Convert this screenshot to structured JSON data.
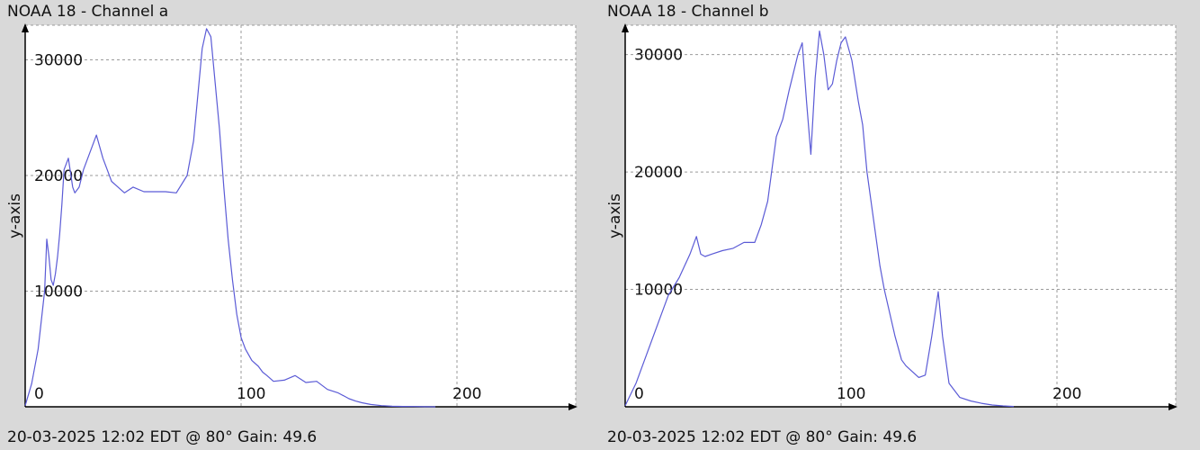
{
  "colors": {
    "line": "#5b5bd6",
    "grid": "#9a9a9a",
    "axis": "#000000",
    "plot_bg": "#ffffff"
  },
  "chart_data": [
    {
      "type": "line",
      "title": "NOAA 18 - Channel a",
      "footer": "20-03-2025 12:02 EDT @ 80° Gain: 49.6",
      "xlabel": "",
      "ylabel": "y-axis",
      "xlim": [
        0,
        255
      ],
      "ylim": [
        0,
        33000
      ],
      "xticks": [
        0,
        100,
        200
      ],
      "yticks": [
        10000,
        20000,
        30000
      ],
      "grid": true,
      "series": [
        {
          "x": [
            0,
            3,
            6,
            9,
            10,
            11,
            12,
            13,
            14,
            15,
            16,
            17,
            18,
            20,
            22,
            23,
            25,
            27,
            30,
            33,
            36,
            38,
            40,
            43,
            46,
            50,
            55,
            60,
            65,
            70,
            75,
            78,
            80,
            82,
            84,
            86,
            88,
            90,
            92,
            94,
            96,
            98,
            100,
            102,
            105,
            108,
            110,
            112,
            115,
            120,
            125,
            130,
            135,
            140,
            145,
            148,
            150,
            153,
            156,
            160,
            165,
            170,
            175,
            180,
            185,
            190
          ],
          "y": [
            100,
            2000,
            5000,
            10000,
            14500,
            13000,
            11000,
            10500,
            11500,
            13000,
            15000,
            17500,
            20500,
            21500,
            19000,
            18500,
            19000,
            20500,
            22000,
            23500,
            21500,
            20500,
            19500,
            19000,
            18500,
            19000,
            18600,
            18600,
            18600,
            18500,
            20000,
            23000,
            27000,
            31000,
            32700,
            32000,
            28000,
            24000,
            19000,
            14500,
            11000,
            8000,
            6000,
            5000,
            4000,
            3500,
            3000,
            2700,
            2200,
            2300,
            2700,
            2100,
            2200,
            1500,
            1200,
            900,
            700,
            500,
            350,
            200,
            100,
            50,
            30,
            20,
            10,
            0
          ]
        }
      ]
    },
    {
      "type": "line",
      "title": "NOAA 18 - Channel b",
      "footer": "20-03-2025 12:02 EDT @ 80° Gain: 49.6",
      "xlabel": "",
      "ylabel": "y-axis",
      "xlim": [
        0,
        255
      ],
      "ylim": [
        0,
        32500
      ],
      "xticks": [
        0,
        100,
        200
      ],
      "yticks": [
        10000,
        20000,
        30000
      ],
      "grid": true,
      "series": [
        {
          "x": [
            0,
            5,
            10,
            15,
            20,
            25,
            30,
            33,
            35,
            37,
            40,
            45,
            50,
            55,
            60,
            63,
            66,
            70,
            73,
            76,
            80,
            82,
            84,
            86,
            88,
            90,
            92,
            94,
            96,
            98,
            100,
            102,
            105,
            108,
            110,
            112,
            115,
            118,
            120,
            125,
            128,
            130,
            133,
            136,
            139,
            142,
            145,
            147,
            150,
            155,
            160,
            165,
            170,
            175,
            180
          ],
          "y": [
            100,
            2000,
            4500,
            7000,
            9500,
            11000,
            13000,
            14500,
            13000,
            12800,
            13000,
            13300,
            13500,
            14000,
            14000,
            15500,
            17500,
            23000,
            24500,
            27000,
            30000,
            31000,
            26000,
            21500,
            28000,
            32000,
            30000,
            27000,
            27500,
            29500,
            31000,
            31500,
            29500,
            26000,
            24000,
            20000,
            16000,
            12000,
            10000,
            6000,
            4000,
            3500,
            3000,
            2500,
            2700,
            6000,
            9800,
            6000,
            2000,
            800,
            500,
            300,
            150,
            80,
            30
          ]
        }
      ]
    }
  ]
}
